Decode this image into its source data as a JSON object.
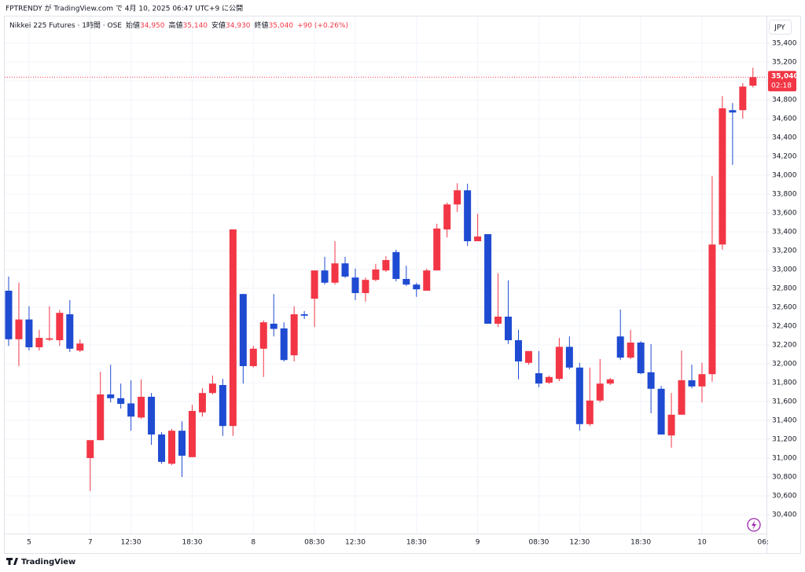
{
  "header": "FPTRENDY が TradingView.com で 4月 10, 2025 06:47 UTC+9 に公開",
  "footer_logo": "TradingView",
  "chart_data": {
    "type": "candlestick",
    "legend": {
      "symbol": "Nikkei 225 Futures · 1時間 · OSE",
      "items": [
        {
          "label": "始値",
          "value": "34,950"
        },
        {
          "label": "高値",
          "value": "35,140"
        },
        {
          "label": "安値",
          "value": "34,930"
        },
        {
          "label": "終値",
          "value": "35,040"
        }
      ],
      "change": "+90 (+0.26%)"
    },
    "currency": "JPY",
    "last_price": {
      "value": 35040,
      "label": "35,040"
    },
    "countdown": "02:18",
    "time_axis_partial_label": "06:",
    "up_color": "#f23645",
    "down_color": "#1e4bd2",
    "grid": true,
    "categories": [
      null,
      null,
      "5",
      null,
      null,
      null,
      null,
      null,
      "7",
      null,
      null,
      null,
      "12:30",
      null,
      null,
      null,
      null,
      null,
      "18:30",
      null,
      null,
      null,
      null,
      null,
      "8",
      null,
      null,
      null,
      null,
      null,
      "08:30",
      null,
      null,
      null,
      "12:30",
      null,
      null,
      null,
      null,
      null,
      "18:30",
      null,
      null,
      null,
      null,
      null,
      "9",
      null,
      null,
      null,
      null,
      null,
      "08:30",
      null,
      null,
      null,
      "12:30",
      null,
      null,
      null,
      null,
      null,
      "18:30",
      null,
      null,
      null,
      null,
      null,
      "10",
      null,
      null,
      null,
      null,
      null
    ],
    "open": [
      32775,
      32260,
      32470,
      32175,
      32255,
      32250,
      32525,
      32140,
      31000,
      31190,
      31675,
      31635,
      31580,
      31430,
      31650,
      31250,
      30940,
      31290,
      31010,
      31485,
      31690,
      31775,
      31340,
      32740,
      31975,
      32160,
      32425,
      32375,
      32090,
      32525,
      32690,
      32990,
      32860,
      33065,
      32915,
      32750,
      32890,
      32990,
      33185,
      32900,
      32840,
      32775,
      32990,
      33425,
      33690,
      33840,
      33300,
      33375,
      32425,
      32500,
      32250,
      32010,
      31900,
      31800,
      31840,
      32180,
      31960,
      31360,
      31610,
      31790,
      32290,
      32065,
      32225,
      31910,
      31735,
      31240,
      31460,
      31825,
      31760,
      31890,
      33265,
      34690,
      34690,
      34950
    ],
    "high": [
      32925,
      32860,
      32610,
      32360,
      32610,
      32570,
      32675,
      32260,
      31190,
      31915,
      31990,
      31790,
      31825,
      31835,
      31690,
      31275,
      31310,
      31390,
      31565,
      31740,
      31875,
      31840,
      33425,
      32740,
      32190,
      32460,
      32740,
      32440,
      32610,
      32560,
      32990,
      33135,
      33300,
      33135,
      33010,
      32915,
      33060,
      33140,
      33210,
      33040,
      32860,
      33010,
      33485,
      33710,
      33915,
      33910,
      33590,
      33375,
      32960,
      32885,
      32360,
      32135,
      32135,
      31875,
      32275,
      32290,
      32010,
      31960,
      32050,
      31850,
      32575,
      32360,
      32240,
      32210,
      31765,
      31690,
      32140,
      31990,
      32010,
      33990,
      34840,
      34765,
      34975,
      35140
    ],
    "low": [
      32190,
      31975,
      32140,
      32140,
      32240,
      32190,
      32125,
      32125,
      30650,
      31190,
      31590,
      31525,
      31290,
      31415,
      31140,
      30940,
      30925,
      30800,
      31010,
      31440,
      31675,
      31235,
      31235,
      31790,
      31960,
      31860,
      32290,
      32025,
      32025,
      32475,
      32390,
      32840,
      32840,
      32910,
      32675,
      32660,
      32875,
      32975,
      32875,
      32825,
      32710,
      32775,
      32990,
      33340,
      33610,
      33250,
      33300,
      32425,
      32390,
      32210,
      31835,
      31990,
      31750,
      31785,
      31815,
      31940,
      31290,
      31340,
      31590,
      31775,
      32040,
      32050,
      31890,
      31475,
      31250,
      31110,
      31460,
      31740,
      31590,
      31810,
      33210,
      34110,
      34600,
      34930
    ],
    "close": [
      32260,
      32470,
      32175,
      32275,
      32270,
      32540,
      32160,
      32215,
      31190,
      31675,
      31635,
      31575,
      31440,
      31650,
      31250,
      30960,
      31290,
      31025,
      31500,
      31690,
      31790,
      31340,
      33425,
      31975,
      32160,
      32440,
      32370,
      32040,
      32525,
      32510,
      32990,
      32860,
      33065,
      32925,
      32750,
      32890,
      33000,
      33100,
      32900,
      32840,
      32790,
      32990,
      33435,
      33690,
      33840,
      33300,
      33350,
      32425,
      32500,
      32250,
      32025,
      32135,
      31790,
      31860,
      32180,
      31960,
      31360,
      31610,
      31790,
      31835,
      32065,
      32225,
      31900,
      31735,
      31250,
      31460,
      31825,
      31760,
      31890,
      33265,
      34710,
      34665,
      34940,
      35040
    ],
    "ylim": [
      30200,
      35700
    ],
    "yticks": [
      {
        "value": 30400,
        "label": "30,400"
      },
      {
        "value": 30600,
        "label": "30,600"
      },
      {
        "value": 30800,
        "label": "30,800"
      },
      {
        "value": 31000,
        "label": "31,000"
      },
      {
        "value": 31200,
        "label": "31,200"
      },
      {
        "value": 31400,
        "label": "31,400"
      },
      {
        "value": 31600,
        "label": "31,600"
      },
      {
        "value": 31800,
        "label": "31,800"
      },
      {
        "value": 32000,
        "label": "32,000"
      },
      {
        "value": 32200,
        "label": "32,200"
      },
      {
        "value": 32400,
        "label": "32,400"
      },
      {
        "value": 32600,
        "label": "32,600"
      },
      {
        "value": 32800,
        "label": "32,800"
      },
      {
        "value": 33000,
        "label": "33,000"
      },
      {
        "value": 33200,
        "label": "33,200"
      },
      {
        "value": 33400,
        "label": "33,400"
      },
      {
        "value": 33600,
        "label": "33,600"
      },
      {
        "value": 33800,
        "label": "33,800"
      },
      {
        "value": 34000,
        "label": "34,000"
      },
      {
        "value": 34200,
        "label": "34,200"
      },
      {
        "value": 34400,
        "label": "34,400"
      },
      {
        "value": 34600,
        "label": "34,600"
      },
      {
        "value": 34800,
        "label": "34,800"
      },
      {
        "value": 35000,
        "label": "35,000"
      },
      {
        "value": 35200,
        "label": "35,200"
      },
      {
        "value": 35400,
        "label": "35,400"
      }
    ]
  }
}
